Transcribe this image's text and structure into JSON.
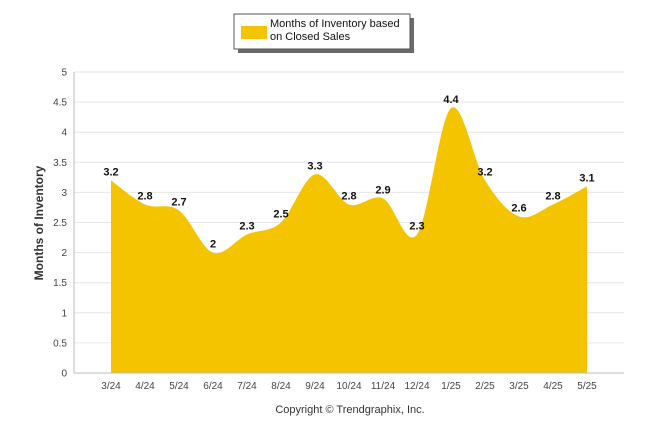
{
  "chart_data": {
    "type": "area",
    "categories": [
      "3/24",
      "4/24",
      "5/24",
      "6/24",
      "7/24",
      "8/24",
      "9/24",
      "10/24",
      "11/24",
      "12/24",
      "1/25",
      "2/25",
      "3/25",
      "4/25",
      "5/25"
    ],
    "series": [
      {
        "name": "Months of Inventory based on Closed Sales",
        "values": [
          3.2,
          2.8,
          2.7,
          2,
          2.3,
          2.5,
          3.3,
          2.8,
          2.9,
          2.3,
          4.4,
          3.2,
          2.6,
          2.8,
          3.1
        ],
        "color": "#f5c400"
      }
    ],
    "ylabel": "Months of Inventory",
    "ylim": [
      0,
      5
    ],
    "yticks": [
      "0",
      "0.5",
      "1",
      "1.5",
      "2",
      "2.5",
      "3",
      "3.5",
      "4",
      "4.5",
      "5"
    ],
    "grid": true,
    "legend": {
      "position": "top-center",
      "line1": "Months of Inventory based",
      "line2": "on Closed Sales"
    },
    "data_labels": true,
    "footer": "Copyright © Trendgraphix, Inc."
  }
}
